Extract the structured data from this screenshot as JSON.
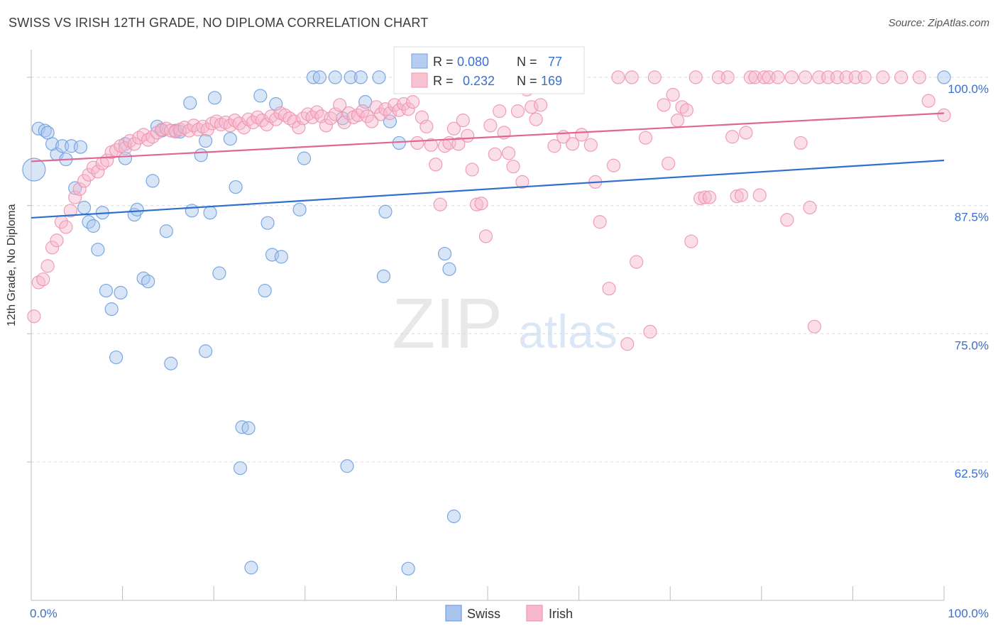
{
  "header": {
    "title": "SWISS VS IRISH 12TH GRADE, NO DIPLOMA CORRELATION CHART",
    "source": "Source: ZipAtlas.com"
  },
  "watermark": {
    "zip": "ZIP",
    "atlas": "atlas"
  },
  "chart_data": {
    "type": "scatter",
    "ylabel": "12th Grade, No Diploma",
    "xlim": [
      0,
      100
    ],
    "ylim": [
      51.5,
      102
    ],
    "x_tick_labels": [
      "0.0%",
      "100.0%"
    ],
    "y_ticks": [
      {
        "value": 100,
        "label": "100.0%"
      },
      {
        "value": 87.5,
        "label": "87.5%"
      },
      {
        "value": 75,
        "label": "75.0%"
      },
      {
        "value": 62.5,
        "label": "62.5%"
      }
    ],
    "grid": true,
    "legend_position": "top-center",
    "colors": {
      "swiss_fill": "#a9c5ee",
      "swiss_stroke": "#6f9ee0",
      "swiss_line": "#2f6fcf",
      "irish_fill": "#f7b8cb",
      "irish_stroke": "#ee93b0",
      "irish_line": "#e0668f",
      "value_text": "#3a6fcf"
    },
    "stats": [
      {
        "r_label": "R =",
        "r": "0.080",
        "n_label": "N =",
        "n": "77"
      },
      {
        "r_label": "R =",
        "r": "0.232",
        "n_label": "N =",
        "n": "169"
      }
    ],
    "series": [
      {
        "name": "Swiss",
        "trend": [
          [
            0,
            86.3
          ],
          [
            100,
            91.9
          ]
        ],
        "points": [
          [
            0.3,
            91
          ],
          [
            0.8,
            95
          ],
          [
            1.5,
            94.8
          ],
          [
            1.8,
            94.6
          ],
          [
            2.3,
            93.5
          ],
          [
            2.8,
            92.5
          ],
          [
            3.4,
            93.3
          ],
          [
            3.8,
            92
          ],
          [
            4.4,
            93.3
          ],
          [
            5.4,
            93.2
          ],
          [
            4.8,
            89.2
          ],
          [
            5.8,
            87.3
          ],
          [
            6.3,
            85.9
          ],
          [
            6.8,
            85.5
          ],
          [
            7.3,
            83.2
          ],
          [
            7.8,
            86.8
          ],
          [
            8.2,
            79.2
          ],
          [
            8.8,
            77.4
          ],
          [
            9.3,
            72.7
          ],
          [
            9.8,
            79
          ],
          [
            10.3,
            93.5
          ],
          [
            10.3,
            92.1
          ],
          [
            11.3,
            86.6
          ],
          [
            11.6,
            87.1
          ],
          [
            12.3,
            80.4
          ],
          [
            12.8,
            80.1
          ],
          [
            13.3,
            89.9
          ],
          [
            13.8,
            95.2
          ],
          [
            14.3,
            94.8
          ],
          [
            14.8,
            85
          ],
          [
            15.3,
            72.1
          ],
          [
            15.8,
            94.8
          ],
          [
            16.3,
            94.7
          ],
          [
            17.4,
            97.5
          ],
          [
            17.6,
            87
          ],
          [
            18.6,
            92.4
          ],
          [
            19.1,
            93.8
          ],
          [
            19.1,
            73.3
          ],
          [
            19.6,
            86.8
          ],
          [
            20.1,
            98
          ],
          [
            20.6,
            80.9
          ],
          [
            21.8,
            94
          ],
          [
            22.4,
            89.3
          ],
          [
            23.1,
            65.9
          ],
          [
            23.8,
            65.8
          ],
          [
            22.9,
            61.9
          ],
          [
            24.1,
            52.2
          ],
          [
            25.1,
            98.2
          ],
          [
            25.6,
            79.2
          ],
          [
            25.9,
            85.8
          ],
          [
            26.4,
            82.7
          ],
          [
            26.8,
            97.4
          ],
          [
            27.4,
            82.5
          ],
          [
            29.4,
            87.1
          ],
          [
            29.9,
            92.1
          ],
          [
            30.9,
            100
          ],
          [
            31.6,
            100
          ],
          [
            33.3,
            100
          ],
          [
            34.1,
            96
          ],
          [
            34.6,
            62.1
          ],
          [
            35.0,
            100
          ],
          [
            36.1,
            100
          ],
          [
            36.6,
            97.6
          ],
          [
            38.1,
            100
          ],
          [
            38.6,
            80.6
          ],
          [
            38.8,
            86.9
          ],
          [
            39.3,
            95.7
          ],
          [
            40.3,
            93.6
          ],
          [
            41.3,
            52.1
          ],
          [
            43.8,
            100
          ],
          [
            44.3,
            100
          ],
          [
            45.3,
            82.8
          ],
          [
            45.8,
            81.3
          ],
          [
            46.3,
            57.2
          ],
          [
            48.1,
            100
          ],
          [
            52.4,
            100
          ],
          [
            100,
            100
          ]
        ]
      },
      {
        "name": "Irish",
        "trend": [
          [
            0,
            91.8
          ],
          [
            100,
            96.5
          ]
        ],
        "points": [
          [
            0.3,
            76.7
          ],
          [
            0.8,
            80
          ],
          [
            1.3,
            80.3
          ],
          [
            1.8,
            81.6
          ],
          [
            2.3,
            83.4
          ],
          [
            2.8,
            84.1
          ],
          [
            3.3,
            85.9
          ],
          [
            3.8,
            85.4
          ],
          [
            4.3,
            87
          ],
          [
            4.8,
            88.3
          ],
          [
            5.3,
            89.1
          ],
          [
            5.8,
            89.9
          ],
          [
            6.3,
            90.5
          ],
          [
            6.8,
            91.2
          ],
          [
            7.3,
            90.8
          ],
          [
            7.8,
            91.6
          ],
          [
            8.3,
            91.9
          ],
          [
            8.8,
            92.7
          ],
          [
            9.3,
            92.9
          ],
          [
            9.8,
            93.3
          ],
          [
            10.3,
            93.1
          ],
          [
            10.8,
            93.8
          ],
          [
            11.3,
            93.5
          ],
          [
            11.8,
            94.1
          ],
          [
            12.3,
            94.4
          ],
          [
            12.8,
            93.9
          ],
          [
            13.3,
            94.2
          ],
          [
            13.8,
            94.6
          ],
          [
            14.3,
            94.9
          ],
          [
            14.8,
            95
          ],
          [
            15.3,
            94.8
          ],
          [
            15.8,
            94.7
          ],
          [
            16.3,
            94.9
          ],
          [
            16.8,
            95.1
          ],
          [
            17.3,
            94.8
          ],
          [
            17.8,
            95.3
          ],
          [
            18.3,
            94.9
          ],
          [
            18.8,
            95.2
          ],
          [
            19.3,
            94.9
          ],
          [
            19.8,
            95.5
          ],
          [
            20.3,
            95.7
          ],
          [
            20.8,
            95.4
          ],
          [
            21.3,
            95.6
          ],
          [
            21.8,
            95.3
          ],
          [
            22.3,
            95.8
          ],
          [
            22.8,
            95.5
          ],
          [
            23.3,
            95.1
          ],
          [
            23.8,
            95.9
          ],
          [
            24.3,
            95.6
          ],
          [
            24.8,
            96.1
          ],
          [
            25.3,
            95.8
          ],
          [
            25.8,
            95.4
          ],
          [
            26.3,
            96.2
          ],
          [
            26.8,
            95.9
          ],
          [
            27.3,
            96.5
          ],
          [
            27.8,
            96.3
          ],
          [
            28.3,
            96
          ],
          [
            28.8,
            95.7
          ],
          [
            29.3,
            95.1
          ],
          [
            29.8,
            96
          ],
          [
            30.3,
            96.4
          ],
          [
            30.8,
            96.1
          ],
          [
            31.3,
            96.6
          ],
          [
            31.8,
            96.2
          ],
          [
            32.3,
            95.3
          ],
          [
            32.8,
            96
          ],
          [
            33.3,
            96.4
          ],
          [
            33.8,
            97.3
          ],
          [
            34.3,
            95.6
          ],
          [
            34.8,
            96.5
          ],
          [
            35.3,
            96.1
          ],
          [
            35.8,
            96.3
          ],
          [
            36.3,
            96.7
          ],
          [
            36.8,
            96.2
          ],
          [
            37.3,
            95.7
          ],
          [
            37.8,
            97.1
          ],
          [
            38.3,
            96.4
          ],
          [
            38.8,
            96.9
          ],
          [
            39.3,
            96.5
          ],
          [
            39.8,
            97.3
          ],
          [
            40.3,
            96.8
          ],
          [
            40.8,
            97.4
          ],
          [
            41.3,
            96.9
          ],
          [
            41.8,
            97.6
          ],
          [
            42.3,
            93.6
          ],
          [
            42.8,
            96.1
          ],
          [
            43.3,
            95.2
          ],
          [
            43.8,
            93.4
          ],
          [
            44.3,
            91.5
          ],
          [
            44.8,
            87.6
          ],
          [
            45.3,
            93.3
          ],
          [
            45.8,
            93.6
          ],
          [
            46.3,
            95
          ],
          [
            46.8,
            93.5
          ],
          [
            47.3,
            95.8
          ],
          [
            47.8,
            94.3
          ],
          [
            48.3,
            91
          ],
          [
            48.8,
            87.6
          ],
          [
            49.3,
            87.7
          ],
          [
            49.8,
            84.5
          ],
          [
            50.3,
            95.3
          ],
          [
            50.8,
            92.5
          ],
          [
            51.3,
            96.7
          ],
          [
            51.8,
            94.6
          ],
          [
            52.3,
            92.6
          ],
          [
            52.8,
            91.3
          ],
          [
            53.3,
            96.7
          ],
          [
            53.8,
            89.8
          ],
          [
            54.3,
            98.8
          ],
          [
            54.8,
            97.1
          ],
          [
            55.3,
            95.9
          ],
          [
            55.8,
            97.3
          ],
          [
            56.3,
            100
          ],
          [
            57.3,
            93.3
          ],
          [
            58.3,
            94.2
          ],
          [
            59.3,
            93.5
          ],
          [
            60.3,
            94.4
          ],
          [
            61.3,
            93.4
          ],
          [
            61.8,
            89.8
          ],
          [
            62.3,
            85.9
          ],
          [
            63.3,
            79.4
          ],
          [
            63.8,
            91.4
          ],
          [
            64.3,
            100
          ],
          [
            65.3,
            74
          ],
          [
            65.8,
            100
          ],
          [
            66.3,
            82
          ],
          [
            67.3,
            94.1
          ],
          [
            67.8,
            75.2
          ],
          [
            68.3,
            100
          ],
          [
            69.3,
            97.3
          ],
          [
            69.8,
            91.6
          ],
          [
            70.3,
            98.3
          ],
          [
            70.8,
            95.8
          ],
          [
            71.3,
            97.1
          ],
          [
            71.8,
            96.8
          ],
          [
            72.3,
            84
          ],
          [
            72.8,
            100
          ],
          [
            73.3,
            88.2
          ],
          [
            73.8,
            88.3
          ],
          [
            74.3,
            88.3
          ],
          [
            75.3,
            100
          ],
          [
            76.3,
            100
          ],
          [
            76.8,
            94.2
          ],
          [
            77.3,
            88.4
          ],
          [
            77.8,
            88.5
          ],
          [
            78.3,
            94.6
          ],
          [
            78.8,
            100
          ],
          [
            79.3,
            100
          ],
          [
            79.8,
            88.5
          ],
          [
            80.3,
            100
          ],
          [
            80.8,
            100
          ],
          [
            81.8,
            100
          ],
          [
            82.8,
            86.1
          ],
          [
            83.3,
            100
          ],
          [
            84.3,
            93.6
          ],
          [
            84.8,
            100
          ],
          [
            85.3,
            87.3
          ],
          [
            85.8,
            75.7
          ],
          [
            86.3,
            100
          ],
          [
            87.3,
            100
          ],
          [
            88.3,
            100
          ],
          [
            89.3,
            100
          ],
          [
            90.3,
            100
          ],
          [
            91.3,
            100
          ],
          [
            93.3,
            100
          ],
          [
            95.3,
            100
          ],
          [
            97.3,
            100
          ],
          [
            98.3,
            97.7
          ],
          [
            100,
            96.3
          ]
        ]
      }
    ]
  }
}
